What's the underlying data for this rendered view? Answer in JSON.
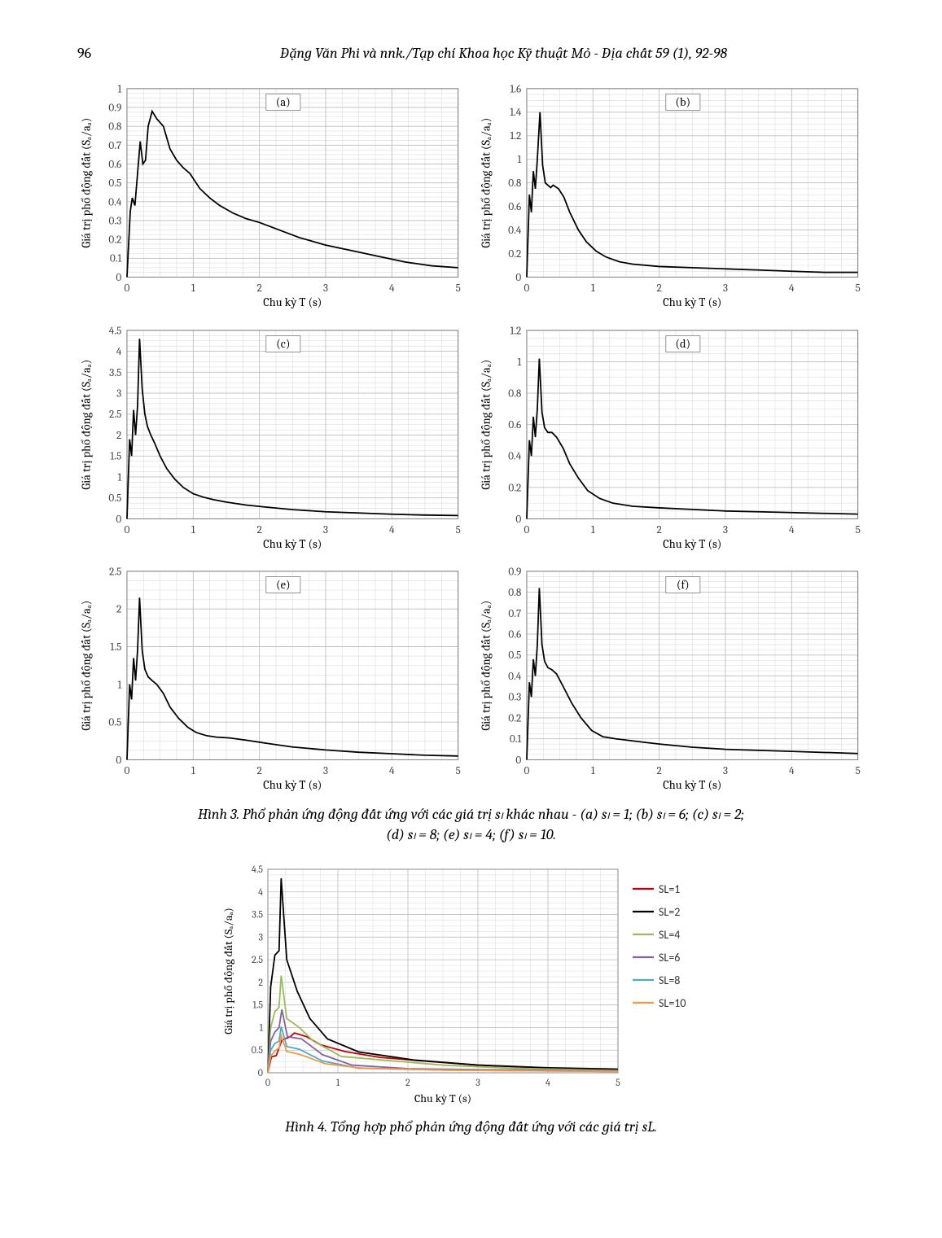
{
  "header": {
    "page_number": "96",
    "journal": "Đặng Văn Phi và nnk./Tạp chí Khoa học Kỹ thuật Mỏ - Địa chất 59 (1), 92-98"
  },
  "axis_labels": {
    "x": "Chu kỳ T (s)",
    "y": "Giá trị phổ động đất (Sₐ/aₐ)"
  },
  "colors": {
    "line": "#000000",
    "ticktext": "#444444",
    "grid_major": "#bfbfbf",
    "grid_minor": "#d9d9d9",
    "axis": "#888888",
    "bg": "#ffffff",
    "legend_c1": "#c00000",
    "legend_c2": "#000000",
    "legend_c3": "#9bbb59",
    "legend_c4": "#8064a2",
    "legend_c5": "#4bacc6",
    "legend_c6": "#f79646"
  },
  "fonts": {
    "tick_size": 12,
    "label_size": 13
  },
  "small_charts": [
    {
      "panel": "(a)",
      "xlim": [
        0,
        5
      ],
      "ylim": [
        0,
        1
      ],
      "xticks": [
        0,
        1,
        2,
        3,
        4,
        5
      ],
      "yticks": [
        0,
        0.1,
        0.2,
        0.3,
        0.4,
        0.5,
        0.6,
        0.7,
        0.8,
        0.9,
        1
      ],
      "xminor_step": 0.25,
      "yminor_step": 0.025,
      "series": [
        [
          0,
          0
        ],
        [
          0.05,
          0.35
        ],
        [
          0.08,
          0.42
        ],
        [
          0.12,
          0.38
        ],
        [
          0.16,
          0.55
        ],
        [
          0.2,
          0.72
        ],
        [
          0.24,
          0.6
        ],
        [
          0.28,
          0.62
        ],
        [
          0.32,
          0.8
        ],
        [
          0.38,
          0.88
        ],
        [
          0.45,
          0.84
        ],
        [
          0.55,
          0.8
        ],
        [
          0.65,
          0.68
        ],
        [
          0.75,
          0.62
        ],
        [
          0.85,
          0.58
        ],
        [
          0.95,
          0.55
        ],
        [
          1.1,
          0.47
        ],
        [
          1.25,
          0.42
        ],
        [
          1.4,
          0.38
        ],
        [
          1.6,
          0.34
        ],
        [
          1.8,
          0.31
        ],
        [
          2.0,
          0.29
        ],
        [
          2.3,
          0.25
        ],
        [
          2.6,
          0.21
        ],
        [
          3.0,
          0.17
        ],
        [
          3.4,
          0.14
        ],
        [
          3.8,
          0.11
        ],
        [
          4.2,
          0.08
        ],
        [
          4.6,
          0.06
        ],
        [
          5.0,
          0.05
        ]
      ]
    },
    {
      "panel": "(b)",
      "xlim": [
        0,
        5
      ],
      "ylim": [
        0,
        1.6
      ],
      "xticks": [
        0,
        1,
        2,
        3,
        4,
        5
      ],
      "yticks": [
        0,
        0.2,
        0.4,
        0.6,
        0.8,
        1,
        1.2,
        1.4,
        1.6
      ],
      "xminor_step": 0.25,
      "yminor_step": 0.05,
      "series": [
        [
          0,
          0
        ],
        [
          0.04,
          0.7
        ],
        [
          0.07,
          0.55
        ],
        [
          0.1,
          0.9
        ],
        [
          0.13,
          0.75
        ],
        [
          0.16,
          1.0
        ],
        [
          0.2,
          1.4
        ],
        [
          0.24,
          0.95
        ],
        [
          0.28,
          0.8
        ],
        [
          0.32,
          0.78
        ],
        [
          0.36,
          0.76
        ],
        [
          0.4,
          0.78
        ],
        [
          0.48,
          0.75
        ],
        [
          0.56,
          0.68
        ],
        [
          0.65,
          0.55
        ],
        [
          0.78,
          0.4
        ],
        [
          0.9,
          0.3
        ],
        [
          1.05,
          0.22
        ],
        [
          1.2,
          0.17
        ],
        [
          1.4,
          0.13
        ],
        [
          1.6,
          0.11
        ],
        [
          2.0,
          0.09
        ],
        [
          2.5,
          0.08
        ],
        [
          3.0,
          0.07
        ],
        [
          3.5,
          0.06
        ],
        [
          4.0,
          0.05
        ],
        [
          4.5,
          0.04
        ],
        [
          5.0,
          0.04
        ]
      ]
    },
    {
      "panel": "(c)",
      "xlim": [
        0,
        5
      ],
      "ylim": [
        0,
        4.5
      ],
      "xticks": [
        0,
        1,
        2,
        3,
        4,
        5
      ],
      "yticks": [
        0,
        0.5,
        1,
        1.5,
        2,
        2.5,
        3,
        3.5,
        4,
        4.5
      ],
      "xminor_step": 0.25,
      "yminor_step": 0.125,
      "series": [
        [
          0,
          0
        ],
        [
          0.04,
          1.9
        ],
        [
          0.07,
          1.5
        ],
        [
          0.1,
          2.6
        ],
        [
          0.13,
          2.0
        ],
        [
          0.16,
          2.7
        ],
        [
          0.19,
          4.3
        ],
        [
          0.23,
          3.1
        ],
        [
          0.27,
          2.5
        ],
        [
          0.31,
          2.2
        ],
        [
          0.36,
          2.0
        ],
        [
          0.42,
          1.8
        ],
        [
          0.5,
          1.5
        ],
        [
          0.6,
          1.2
        ],
        [
          0.72,
          0.95
        ],
        [
          0.85,
          0.75
        ],
        [
          1.0,
          0.6
        ],
        [
          1.15,
          0.52
        ],
        [
          1.3,
          0.46
        ],
        [
          1.5,
          0.4
        ],
        [
          1.8,
          0.33
        ],
        [
          2.1,
          0.28
        ],
        [
          2.5,
          0.22
        ],
        [
          3.0,
          0.17
        ],
        [
          3.5,
          0.14
        ],
        [
          4.0,
          0.11
        ],
        [
          4.5,
          0.09
        ],
        [
          5.0,
          0.08
        ]
      ]
    },
    {
      "panel": "(d)",
      "xlim": [
        0,
        5
      ],
      "ylim": [
        0,
        1.2
      ],
      "xticks": [
        0,
        1,
        2,
        3,
        4,
        5
      ],
      "yticks": [
        0,
        0.2,
        0.4,
        0.6,
        0.8,
        1,
        1.2
      ],
      "xminor_step": 0.25,
      "yminor_step": 0.05,
      "series": [
        [
          0,
          0
        ],
        [
          0.04,
          0.5
        ],
        [
          0.07,
          0.4
        ],
        [
          0.1,
          0.65
        ],
        [
          0.13,
          0.52
        ],
        [
          0.16,
          0.7
        ],
        [
          0.19,
          1.02
        ],
        [
          0.23,
          0.68
        ],
        [
          0.27,
          0.58
        ],
        [
          0.32,
          0.55
        ],
        [
          0.38,
          0.55
        ],
        [
          0.45,
          0.52
        ],
        [
          0.55,
          0.45
        ],
        [
          0.65,
          0.35
        ],
        [
          0.78,
          0.26
        ],
        [
          0.92,
          0.18
        ],
        [
          1.1,
          0.13
        ],
        [
          1.3,
          0.1
        ],
        [
          1.6,
          0.08
        ],
        [
          2.0,
          0.07
        ],
        [
          2.5,
          0.06
        ],
        [
          3.0,
          0.05
        ],
        [
          3.5,
          0.045
        ],
        [
          4.0,
          0.04
        ],
        [
          4.5,
          0.035
        ],
        [
          5.0,
          0.03
        ]
      ]
    },
    {
      "panel": "(e)",
      "xlim": [
        0,
        5
      ],
      "ylim": [
        0,
        2.5
      ],
      "xticks": [
        0,
        1,
        2,
        3,
        4,
        5
      ],
      "yticks": [
        0,
        0.5,
        1,
        1.5,
        2,
        2.5
      ],
      "xminor_step": 0.25,
      "yminor_step": 0.125,
      "series": [
        [
          0,
          0
        ],
        [
          0.04,
          1.0
        ],
        [
          0.07,
          0.8
        ],
        [
          0.1,
          1.35
        ],
        [
          0.13,
          1.05
        ],
        [
          0.16,
          1.45
        ],
        [
          0.19,
          2.15
        ],
        [
          0.23,
          1.45
        ],
        [
          0.27,
          1.2
        ],
        [
          0.32,
          1.1
        ],
        [
          0.38,
          1.05
        ],
        [
          0.45,
          1.0
        ],
        [
          0.55,
          0.88
        ],
        [
          0.65,
          0.7
        ],
        [
          0.78,
          0.55
        ],
        [
          0.92,
          0.43
        ],
        [
          1.05,
          0.36
        ],
        [
          1.2,
          0.32
        ],
        [
          1.35,
          0.3
        ],
        [
          1.55,
          0.29
        ],
        [
          1.8,
          0.26
        ],
        [
          2.1,
          0.22
        ],
        [
          2.5,
          0.17
        ],
        [
          3.0,
          0.13
        ],
        [
          3.5,
          0.1
        ],
        [
          4.0,
          0.08
        ],
        [
          4.5,
          0.06
        ],
        [
          5.0,
          0.05
        ]
      ]
    },
    {
      "panel": "(f)",
      "xlim": [
        0,
        5
      ],
      "ylim": [
        0,
        0.9
      ],
      "xticks": [
        0,
        1,
        2,
        3,
        4,
        5
      ],
      "yticks": [
        0,
        0.1,
        0.2,
        0.3,
        0.4,
        0.5,
        0.6,
        0.7,
        0.8,
        0.9
      ],
      "xminor_step": 0.25,
      "yminor_step": 0.025,
      "series": [
        [
          0,
          0
        ],
        [
          0.04,
          0.37
        ],
        [
          0.07,
          0.3
        ],
        [
          0.1,
          0.48
        ],
        [
          0.13,
          0.4
        ],
        [
          0.16,
          0.55
        ],
        [
          0.19,
          0.82
        ],
        [
          0.23,
          0.55
        ],
        [
          0.27,
          0.47
        ],
        [
          0.32,
          0.44
        ],
        [
          0.38,
          0.43
        ],
        [
          0.45,
          0.41
        ],
        [
          0.55,
          0.35
        ],
        [
          0.68,
          0.27
        ],
        [
          0.82,
          0.2
        ],
        [
          0.98,
          0.14
        ],
        [
          1.15,
          0.11
        ],
        [
          1.35,
          0.1
        ],
        [
          1.6,
          0.09
        ],
        [
          2.0,
          0.075
        ],
        [
          2.5,
          0.06
        ],
        [
          3.0,
          0.05
        ],
        [
          3.5,
          0.045
        ],
        [
          4.0,
          0.04
        ],
        [
          4.5,
          0.035
        ],
        [
          5.0,
          0.03
        ]
      ]
    }
  ],
  "caption3_line1": "Hình 3. Phổ phản ứng động đất ứng với các giá trị sₗ khác nhau - (a) sₗ = 1; (b) sₗ = 6; (c) sₗ = 2;",
  "caption3_line2": "(d) sₗ = 8; (e) sₗ = 4; (f) sₗ = 10.",
  "combined_chart": {
    "xlim": [
      0,
      5
    ],
    "ylim": [
      0,
      4.5
    ],
    "xticks": [
      0,
      1,
      2,
      3,
      4,
      5
    ],
    "yticks": [
      0,
      0.5,
      1,
      1.5,
      2,
      2.5,
      3,
      3.5,
      4,
      4.5
    ],
    "xminor_step": 0.25,
    "yminor_step": 0.125,
    "legend": [
      {
        "label": "SL=1",
        "color": "#c00000"
      },
      {
        "label": "SL=2",
        "color": "#000000"
      },
      {
        "label": "SL=4",
        "color": "#9bbb59"
      },
      {
        "label": "SL=6",
        "color": "#8064a2"
      },
      {
        "label": "SL=8",
        "color": "#4bacc6"
      },
      {
        "label": "SL=10",
        "color": "#f79646"
      }
    ],
    "series": {
      "SL=1": [
        [
          0,
          0
        ],
        [
          0.05,
          0.35
        ],
        [
          0.12,
          0.38
        ],
        [
          0.2,
          0.72
        ],
        [
          0.32,
          0.8
        ],
        [
          0.38,
          0.88
        ],
        [
          0.55,
          0.8
        ],
        [
          0.75,
          0.62
        ],
        [
          1.1,
          0.47
        ],
        [
          1.6,
          0.34
        ],
        [
          2.3,
          0.25
        ],
        [
          3.0,
          0.17
        ],
        [
          4.0,
          0.1
        ],
        [
          5.0,
          0.05
        ]
      ],
      "SL=2": [
        [
          0,
          0
        ],
        [
          0.04,
          1.9
        ],
        [
          0.1,
          2.6
        ],
        [
          0.16,
          2.7
        ],
        [
          0.19,
          4.3
        ],
        [
          0.27,
          2.5
        ],
        [
          0.42,
          1.8
        ],
        [
          0.6,
          1.2
        ],
        [
          0.85,
          0.75
        ],
        [
          1.3,
          0.46
        ],
        [
          2.1,
          0.28
        ],
        [
          3.0,
          0.17
        ],
        [
          4.0,
          0.11
        ],
        [
          5.0,
          0.08
        ]
      ],
      "SL=4": [
        [
          0,
          0
        ],
        [
          0.04,
          1.0
        ],
        [
          0.1,
          1.35
        ],
        [
          0.16,
          1.45
        ],
        [
          0.19,
          2.15
        ],
        [
          0.27,
          1.2
        ],
        [
          0.45,
          1.0
        ],
        [
          0.65,
          0.7
        ],
        [
          1.05,
          0.36
        ],
        [
          1.8,
          0.26
        ],
        [
          2.5,
          0.17
        ],
        [
          3.5,
          0.1
        ],
        [
          5.0,
          0.05
        ]
      ],
      "SL=6": [
        [
          0,
          0
        ],
        [
          0.04,
          0.7
        ],
        [
          0.1,
          0.9
        ],
        [
          0.16,
          1.0
        ],
        [
          0.2,
          1.4
        ],
        [
          0.28,
          0.8
        ],
        [
          0.48,
          0.75
        ],
        [
          0.78,
          0.4
        ],
        [
          1.2,
          0.17
        ],
        [
          2.0,
          0.09
        ],
        [
          3.0,
          0.07
        ],
        [
          5.0,
          0.04
        ]
      ],
      "SL=8": [
        [
          0,
          0
        ],
        [
          0.04,
          0.5
        ],
        [
          0.1,
          0.65
        ],
        [
          0.16,
          0.7
        ],
        [
          0.19,
          1.02
        ],
        [
          0.27,
          0.58
        ],
        [
          0.45,
          0.52
        ],
        [
          0.78,
          0.26
        ],
        [
          1.3,
          0.1
        ],
        [
          2.5,
          0.06
        ],
        [
          4.0,
          0.04
        ],
        [
          5.0,
          0.03
        ]
      ],
      "SL=10": [
        [
          0,
          0
        ],
        [
          0.04,
          0.37
        ],
        [
          0.1,
          0.48
        ],
        [
          0.16,
          0.55
        ],
        [
          0.19,
          0.82
        ],
        [
          0.27,
          0.47
        ],
        [
          0.45,
          0.41
        ],
        [
          0.82,
          0.2
        ],
        [
          1.35,
          0.1
        ],
        [
          2.5,
          0.06
        ],
        [
          4.0,
          0.04
        ],
        [
          5.0,
          0.03
        ]
      ]
    }
  },
  "caption4": "Hình 4. Tổng hợp phổ phản ứng động đất ứng với các giá trị sL."
}
